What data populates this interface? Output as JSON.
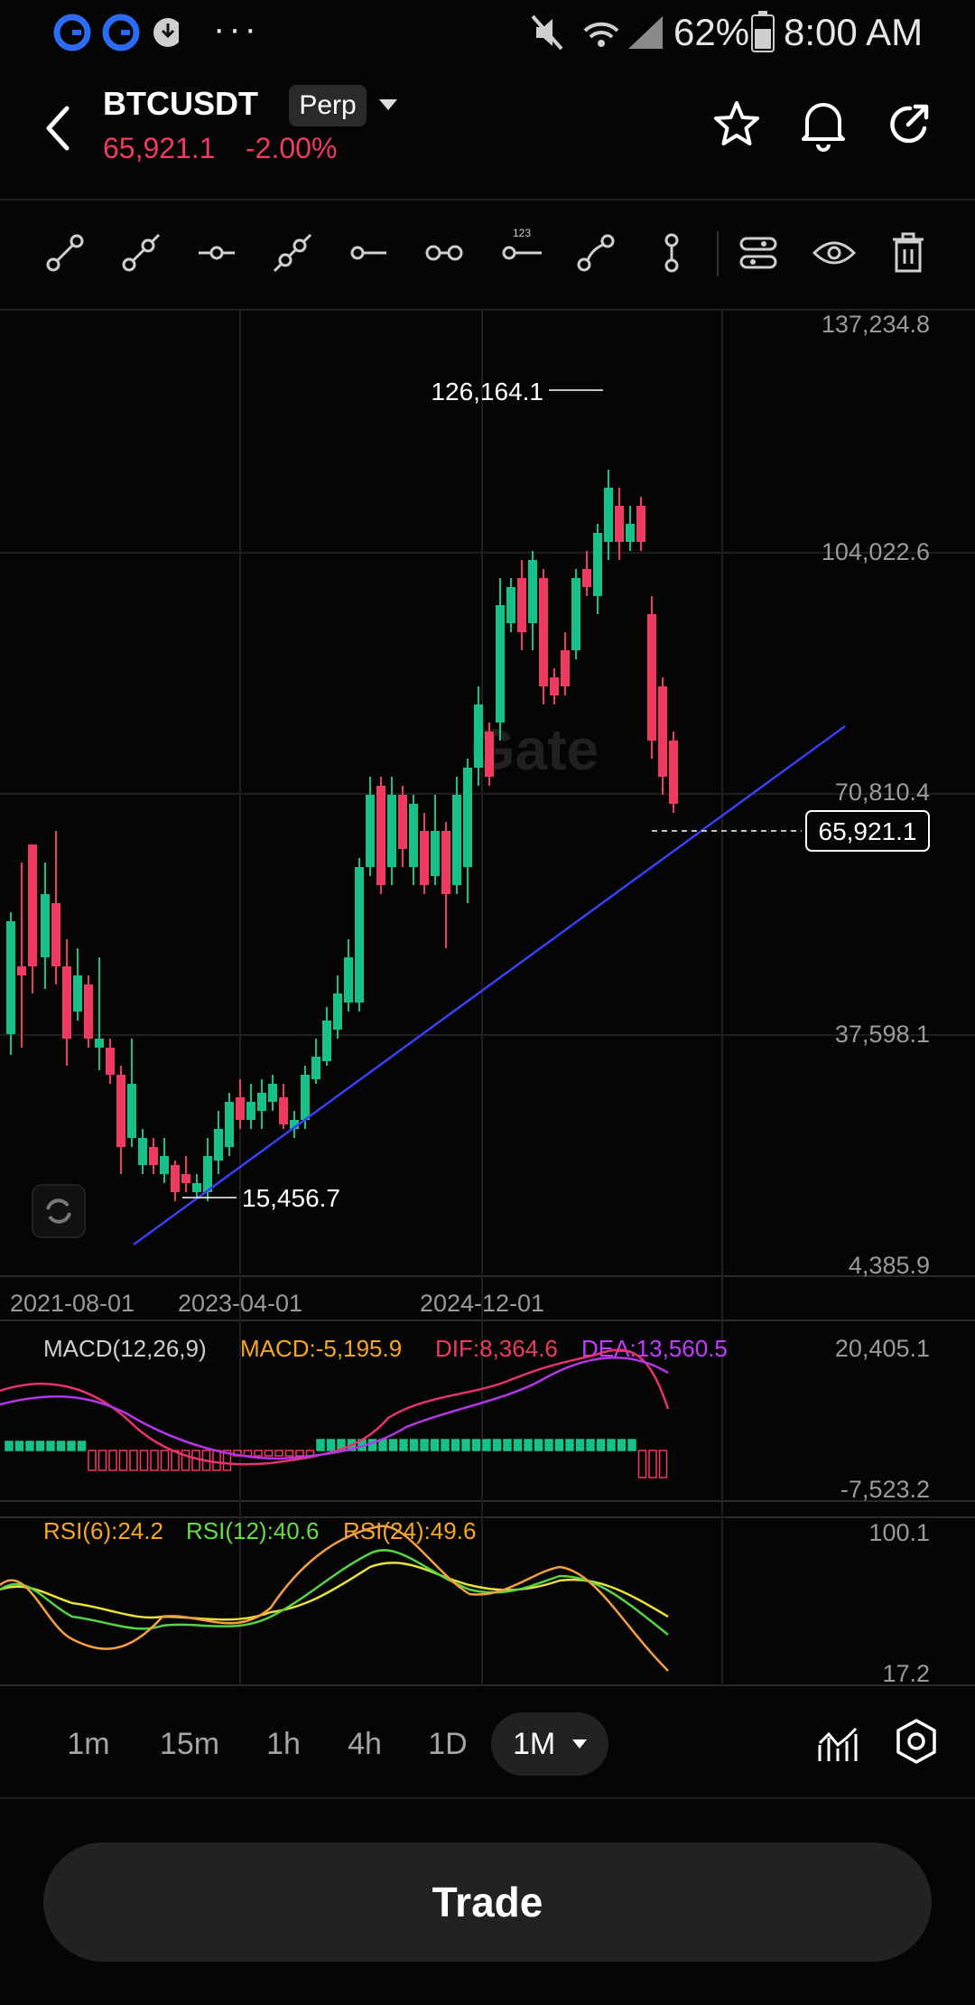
{
  "status_bar": {
    "battery": "62%",
    "time": "8:00 AM",
    "more": "···"
  },
  "header": {
    "symbol": "BTCUSDT",
    "contract_type": "Perp",
    "price": "65,921.1",
    "change": "-2.00%",
    "accent_red": "#f03a5f",
    "accent_green": "#17c28a"
  },
  "toolbar": {
    "icons": [
      "line-tool-icon",
      "ray-tool-icon",
      "horizontal-line-icon",
      "extended-line-icon",
      "horizontal-ray-icon",
      "parallel-line-icon",
      "price-label-icon",
      "path-tool-icon",
      "vertical-tool-icon",
      "layers-icon",
      "visibility-icon",
      "trash-icon"
    ],
    "badge": "123"
  },
  "main_chart": {
    "price_labels": [
      "137,234.8",
      "104,022.6",
      "70,810.4",
      "37,598.1",
      "4,385.9"
    ],
    "date_labels": [
      "2021-08-01",
      "2023-04-01",
      "2024-12-01"
    ],
    "high_label": "126,164.1",
    "low_label": "15,456.7",
    "current_price": "65,921.1",
    "watermark": "Gate"
  },
  "macd": {
    "title": "MACD(12,26,9)",
    "macd": "MACD:-5,195.9",
    "dif": "DIF:8,364.6",
    "dea": "DEA:13,560.5",
    "axis_top": "20,405.1",
    "axis_bottom": "-7,523.2"
  },
  "rsi": {
    "rsi6": "RSI(6):24.2",
    "rsi12": "RSI(12):40.6",
    "rsi24": "RSI(24):49.6",
    "axis_top": "100.1",
    "axis_bottom": "17.2"
  },
  "timeframes": [
    "1m",
    "15m",
    "1h",
    "4h",
    "1D",
    "1M"
  ],
  "active_timeframe": "1M",
  "trade_label": "Trade"
}
